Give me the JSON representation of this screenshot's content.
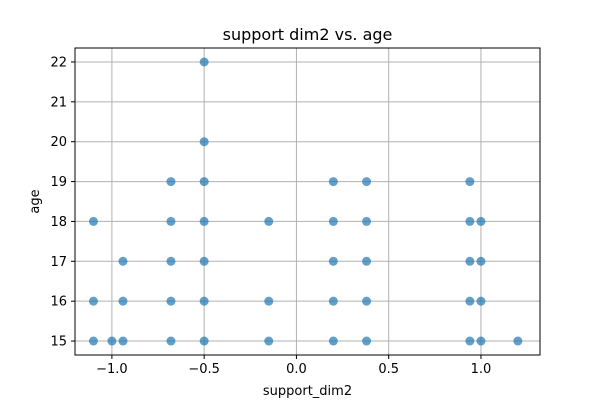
{
  "chart_data": {
    "type": "scatter",
    "title": "support dim2 vs. age",
    "xlabel": "support_dim2",
    "ylabel": "age",
    "xlim": [
      -1.2,
      1.32
    ],
    "ylim": [
      14.65,
      22.35
    ],
    "grid": true,
    "point_color": "#1f77b4",
    "point_opacity": 0.7,
    "x_ticks": [
      -1.0,
      -0.5,
      0.0,
      0.5,
      1.0
    ],
    "x_tick_labels": [
      "−1.0",
      "−0.5",
      "0.0",
      "0.5",
      "1.0"
    ],
    "y_ticks": [
      15,
      16,
      17,
      18,
      19,
      20,
      21,
      22
    ],
    "y_tick_labels": [
      "15",
      "16",
      "17",
      "18",
      "19",
      "20",
      "21",
      "22"
    ],
    "points": [
      {
        "x": -0.5,
        "y": 22
      },
      {
        "x": -0.5,
        "y": 20
      },
      {
        "x": -0.68,
        "y": 19
      },
      {
        "x": -0.5,
        "y": 19
      },
      {
        "x": 0.2,
        "y": 19
      },
      {
        "x": 0.38,
        "y": 19
      },
      {
        "x": 0.94,
        "y": 19
      },
      {
        "x": -1.1,
        "y": 18
      },
      {
        "x": -0.68,
        "y": 18
      },
      {
        "x": -0.5,
        "y": 18
      },
      {
        "x": -0.15,
        "y": 18
      },
      {
        "x": 0.2,
        "y": 18
      },
      {
        "x": 0.38,
        "y": 18
      },
      {
        "x": 0.94,
        "y": 18
      },
      {
        "x": 1.0,
        "y": 18
      },
      {
        "x": -0.94,
        "y": 17
      },
      {
        "x": -0.68,
        "y": 17
      },
      {
        "x": -0.5,
        "y": 17
      },
      {
        "x": 0.2,
        "y": 17
      },
      {
        "x": 0.38,
        "y": 17
      },
      {
        "x": 0.94,
        "y": 17
      },
      {
        "x": 1.0,
        "y": 17
      },
      {
        "x": -1.1,
        "y": 16
      },
      {
        "x": -0.94,
        "y": 16
      },
      {
        "x": -0.68,
        "y": 16
      },
      {
        "x": -0.5,
        "y": 16
      },
      {
        "x": -0.15,
        "y": 16
      },
      {
        "x": 0.2,
        "y": 16
      },
      {
        "x": 0.38,
        "y": 16
      },
      {
        "x": 0.94,
        "y": 16
      },
      {
        "x": 1.0,
        "y": 16
      },
      {
        "x": -1.1,
        "y": 15
      },
      {
        "x": -1.0,
        "y": 15
      },
      {
        "x": -0.94,
        "y": 15
      },
      {
        "x": -0.68,
        "y": 15
      },
      {
        "x": -0.5,
        "y": 15
      },
      {
        "x": -0.15,
        "y": 15
      },
      {
        "x": 0.2,
        "y": 15
      },
      {
        "x": 0.38,
        "y": 15
      },
      {
        "x": 0.94,
        "y": 15
      },
      {
        "x": 1.0,
        "y": 15
      },
      {
        "x": 1.2,
        "y": 15
      }
    ]
  }
}
